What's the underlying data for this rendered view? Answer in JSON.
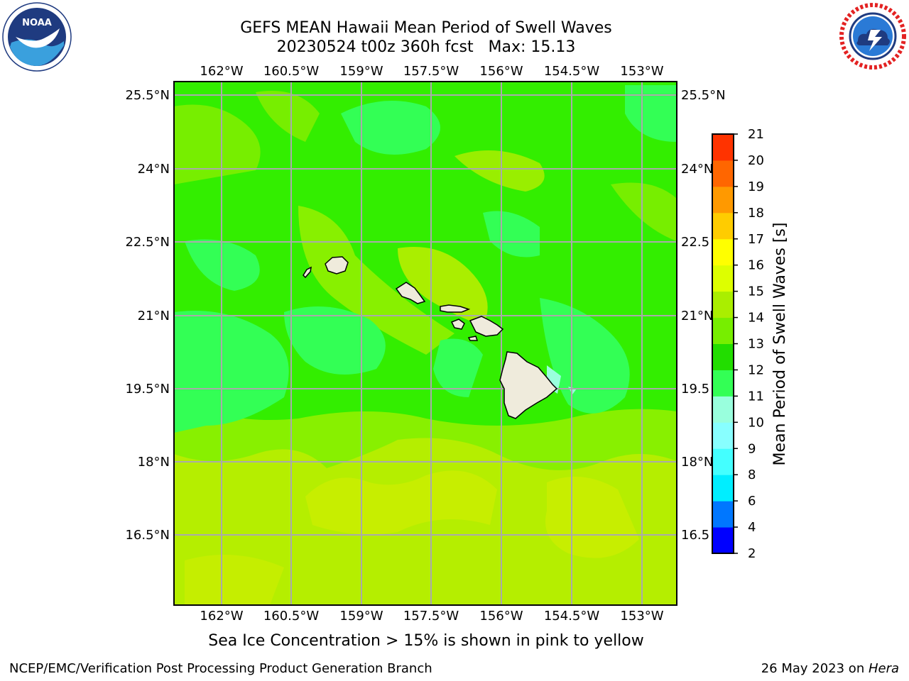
{
  "title": {
    "line1": "GEFS MEAN Hawaii Mean Period of Swell Waves",
    "line2": "20230524 t00z 360h fcst   Max: 15.13"
  },
  "map": {
    "lon_labels": [
      "162°W",
      "160.5°W",
      "159°W",
      "157.5°W",
      "156°W",
      "154.5°W",
      "153°W"
    ],
    "lat_labels": [
      "25.5°N",
      "24°N",
      "22.5°N",
      "21°N",
      "19.5°N",
      "18°N",
      "16.5°N"
    ],
    "lat_labels_right": [
      "25.5°N",
      "24°N",
      "22.5",
      "21°N",
      "19.5",
      "18°N",
      "16.5"
    ],
    "lon_values": [
      -162,
      -160.5,
      -159,
      -157.5,
      -156,
      -154.5,
      -153
    ],
    "lat_values": [
      25.5,
      24,
      22.5,
      21,
      19.5,
      18,
      16.5
    ],
    "gridline_color": "#aaaaaa",
    "dominant_fill": "#33ee00",
    "islands": [
      "Niihau",
      "Kauai",
      "Oahu",
      "Molokai",
      "Lanai",
      "Maui",
      "Kahoolawe",
      "Hawaii"
    ],
    "land_color": "#efebdc"
  },
  "colorbar": {
    "title": "Mean Period of Swell Waves [s]",
    "tick_labels": [
      "2",
      "4",
      "6",
      "8",
      "9",
      "10",
      "11",
      "12",
      "13",
      "14",
      "15",
      "16",
      "17",
      "18",
      "19",
      "20",
      "21"
    ],
    "colors": [
      "#0000ff",
      "#0077ff",
      "#00eeff",
      "#44ffff",
      "#88ffff",
      "#99ffdd",
      "#33ff55",
      "#22dd00",
      "#77ee00",
      "#aaee00",
      "#ddff00",
      "#ffff00",
      "#ffcc00",
      "#ff9900",
      "#ff6600",
      "#ff3300",
      "#ff0000"
    ]
  },
  "note": "Sea Ice Concentration > 15% is shown in pink to yellow",
  "footer": {
    "left": "NCEP/EMC/Verification Post Processing Product Generation Branch",
    "right_prefix": "26 May 2023 on ",
    "right_host": "Hera"
  },
  "logos": {
    "noaa_text": "NOAA",
    "nws_text": "NATIONAL WEATHER SERVICE"
  }
}
